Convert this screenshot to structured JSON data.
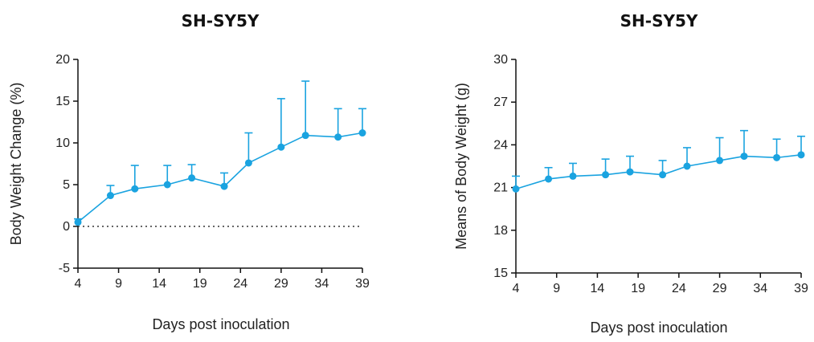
{
  "chart_data": [
    {
      "type": "line",
      "title": "SH-SY5Y",
      "xlabel": "Days post inoculation",
      "ylabel": "Body Weight Change (%)",
      "xlim": [
        4,
        39
      ],
      "ylim": [
        -5,
        20
      ],
      "xticks": [
        4,
        9,
        14,
        19,
        24,
        29,
        34,
        39
      ],
      "yticks": [
        -5,
        0,
        5,
        10,
        15,
        20
      ],
      "reference_line": {
        "y": 0,
        "style": "dotted"
      },
      "color": "#1aa3e0",
      "series": [
        {
          "x": [
            4,
            8,
            11,
            15,
            18,
            22,
            25,
            29,
            32,
            36,
            39
          ],
          "y": [
            0.5,
            3.7,
            4.5,
            5.0,
            5.8,
            4.8,
            7.6,
            9.5,
            10.9,
            10.7,
            11.2
          ],
          "error_upper": [
            0.4,
            1.2,
            2.8,
            2.3,
            1.6,
            1.6,
            3.6,
            5.8,
            6.5,
            3.4,
            2.9
          ]
        }
      ]
    },
    {
      "type": "line",
      "title": "SH-SY5Y",
      "xlabel": "Days post inoculation",
      "ylabel": "Means of Body Weight (g)",
      "xlim": [
        4,
        39
      ],
      "ylim": [
        15,
        30
      ],
      "xticks": [
        4,
        9,
        14,
        19,
        24,
        29,
        34,
        39
      ],
      "yticks": [
        15,
        18,
        21,
        24,
        27,
        30
      ],
      "color": "#1aa3e0",
      "series": [
        {
          "x": [
            4,
            8,
            11,
            15,
            18,
            22,
            25,
            29,
            32,
            36,
            39
          ],
          "y": [
            20.9,
            21.6,
            21.8,
            21.9,
            22.1,
            21.9,
            22.5,
            22.9,
            23.2,
            23.1,
            23.3
          ],
          "error_upper": [
            0.9,
            0.8,
            0.9,
            1.1,
            1.1,
            1.0,
            1.3,
            1.6,
            1.8,
            1.3,
            1.3
          ]
        }
      ]
    }
  ]
}
